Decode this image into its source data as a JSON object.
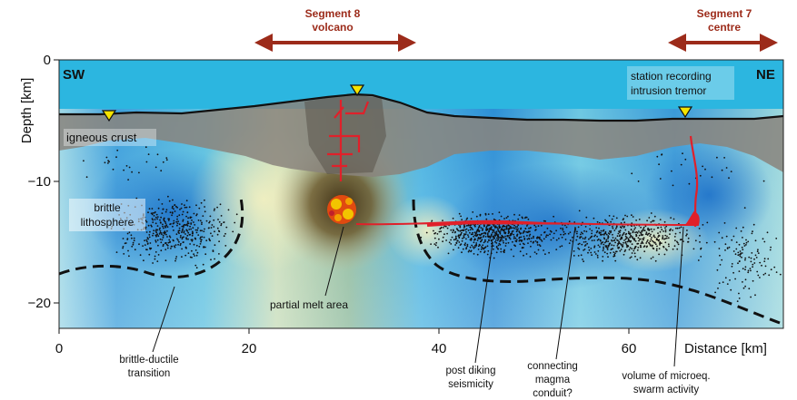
{
  "segments": {
    "segment8": {
      "line1": "Segment 8",
      "line2": "volcano"
    },
    "segment7": {
      "line1": "Segment 7",
      "line2": "centre"
    }
  },
  "axes": {
    "y_label": "Depth [km]",
    "x_label": "Distance [km]",
    "y_ticks": [
      {
        "value": 0,
        "label": "0"
      },
      {
        "value": -10,
        "label": "−10"
      },
      {
        "value": -20,
        "label": "−20"
      }
    ],
    "x_ticks": [
      {
        "value": 0,
        "label": "0"
      },
      {
        "value": 20,
        "label": "20"
      },
      {
        "value": 40,
        "label": "40"
      },
      {
        "value": 60,
        "label": "60"
      }
    ]
  },
  "corners": {
    "left": "SW",
    "right": "NE"
  },
  "labels": {
    "igneous_crust": "igneous crust",
    "brittle_lithosphere_1": "brittle",
    "brittle_lithosphere_2": "lithosphere",
    "station_1": "station recording",
    "station_2": "intrusion tremor",
    "partial_melt": "partial melt area",
    "brittle_ductile_1": "brittle-ductile",
    "brittle_ductile_2": "transition",
    "post_diking_1": "post diking",
    "post_diking_2": "seismicity",
    "connecting_1": "connecting",
    "connecting_2": "magma",
    "connecting_3": "conduit?",
    "volume_1": "volume of microeq.",
    "volume_2": "swarm activity"
  },
  "colors": {
    "sea": "#2cb6e0",
    "crust": "#8a847c",
    "magma": "#e0202a",
    "segment_arrow": "#9c2b1a",
    "station": "#f5e400",
    "earthquake": "#111111"
  }
}
